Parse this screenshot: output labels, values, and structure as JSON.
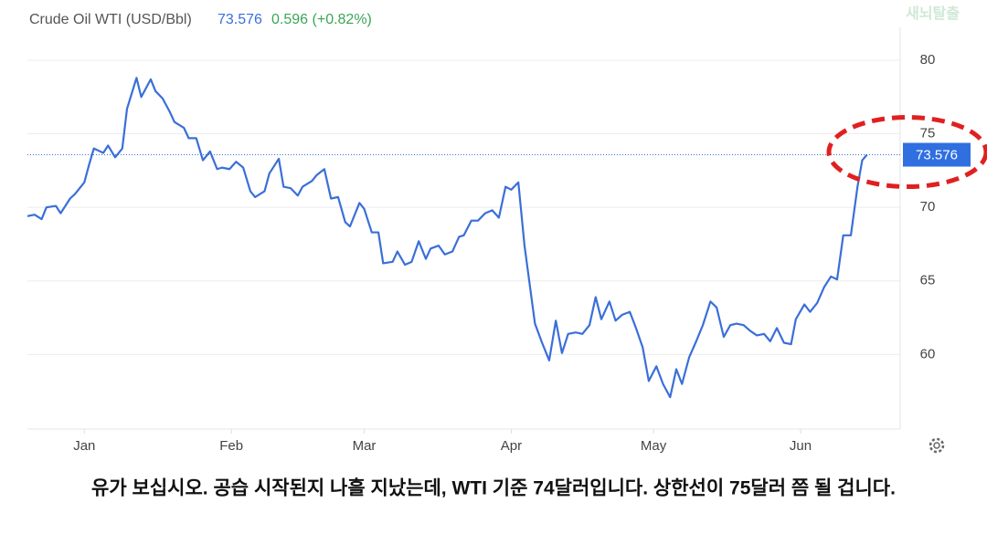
{
  "chart_data": {
    "type": "line",
    "title": "Crude Oil WTI (USD/Bbl)",
    "price": 73.576,
    "change_label": "0.596 (+0.82%)",
    "watermark": "새뇌탈출",
    "caption": "유가 보십시오. 공습 시작된지 나흘 지났는데, WTI 기준 74달러입니다. 상한선이 75달러 쯤 될 겁니다.",
    "series": [
      {
        "name": "Crude Oil WTI",
        "color": "#3a6fd8",
        "x": [
          -12,
          -10.5,
          -9,
          -8,
          -6,
          -5,
          -3,
          -2,
          0,
          1,
          2,
          4,
          5,
          6.5,
          8,
          9,
          11,
          12,
          14,
          15,
          16.5,
          18,
          19,
          21,
          22,
          23.6,
          25,
          26.5,
          28,
          29,
          30.6,
          32,
          33.5,
          35,
          36,
          38,
          39,
          41,
          42,
          43.5,
          45,
          46,
          48,
          49,
          50.6,
          52,
          53.5,
          55,
          56,
          58,
          59,
          60.6,
          62,
          63,
          65,
          66,
          67.6,
          69,
          70.5,
          72,
          73,
          74.7,
          76,
          77.6,
          79,
          80,
          81.6,
          83,
          84.5,
          86,
          87.4,
          88.8,
          90,
          91.5,
          92.8,
          95,
          96.5,
          98,
          99.4,
          100.7,
          102,
          103.6,
          105,
          106.5,
          107.8,
          109,
          110.7,
          112,
          113.4,
          115,
          116.3,
          117.7,
          119,
          120.6,
          122,
          123.5,
          124.8,
          126,
          127.5,
          129,
          130.4,
          132,
          133.3,
          134.8,
          136.2,
          137.5,
          139,
          140.4,
          141.8,
          143.3,
          144.6,
          146,
          147.5,
          149,
          150,
          151.8,
          153,
          154.5,
          156,
          157.4,
          158.7,
          160,
          161.6,
          163,
          164,
          165
        ],
        "values": [
          69.4,
          69.5,
          69.2,
          70.0,
          70.1,
          69.6,
          70.6,
          70.9,
          71.7,
          72.9,
          74.0,
          73.7,
          74.2,
          73.4,
          74.0,
          76.7,
          78.8,
          77.5,
          78.7,
          77.9,
          77.4,
          76.5,
          75.8,
          75.4,
          74.7,
          74.7,
          73.2,
          73.8,
          72.6,
          72.7,
          72.6,
          73.1,
          72.7,
          71.1,
          70.7,
          71.1,
          72.3,
          73.3,
          71.4,
          71.3,
          70.8,
          71.4,
          71.8,
          72.2,
          72.6,
          70.6,
          70.7,
          69.0,
          68.7,
          70.3,
          69.9,
          68.3,
          68.3,
          66.2,
          66.3,
          67.0,
          66.1,
          66.3,
          67.7,
          66.5,
          67.2,
          67.4,
          66.8,
          67.0,
          68.0,
          68.1,
          69.1,
          69.1,
          69.6,
          69.8,
          69.3,
          71.4,
          71.2,
          71.7,
          67.4,
          62.1,
          60.8,
          59.6,
          62.3,
          60.1,
          61.4,
          61.5,
          61.4,
          62.0,
          63.9,
          62.4,
          63.6,
          62.3,
          62.7,
          62.9,
          61.8,
          60.5,
          58.2,
          59.2,
          58.0,
          57.1,
          59.0,
          58.0,
          59.8,
          60.9,
          62.0,
          63.6,
          63.2,
          61.2,
          62.0,
          62.1,
          62.0,
          61.6,
          61.3,
          61.4,
          60.9,
          61.8,
          60.8,
          60.7,
          62.4,
          63.4,
          62.9,
          63.5,
          64.6,
          65.3,
          65.1,
          68.1,
          68.1,
          71.4,
          73.2,
          73.576
        ]
      }
    ],
    "xlim": [
      -12,
      172
    ],
    "xticks": [
      {
        "value": 0,
        "label": "Jan"
      },
      {
        "value": 31,
        "label": "Feb"
      },
      {
        "value": 59,
        "label": "Mar"
      },
      {
        "value": 90,
        "label": "Apr"
      },
      {
        "value": 120,
        "label": "May"
      },
      {
        "value": 151,
        "label": "Jun"
      }
    ],
    "ylim": [
      55,
      82
    ],
    "yticks": [
      60,
      65,
      70,
      75,
      80
    ],
    "grid": true
  }
}
